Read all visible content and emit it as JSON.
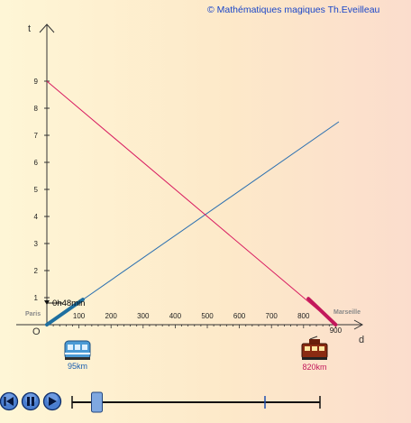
{
  "copyright": "© Mathématiques magiques Th.Eveilleau",
  "axes": {
    "y_name": "t",
    "x_name": "d",
    "origin_label": "O",
    "x_ticks": [
      "100",
      "200",
      "300",
      "400",
      "500",
      "600",
      "700",
      "800",
      "900"
    ],
    "y_ticks": [
      "1",
      "2",
      "3",
      "4",
      "5",
      "6",
      "7",
      "8",
      "9"
    ]
  },
  "cities": {
    "start": "Paris",
    "end": "Marseille"
  },
  "time_readout": "0h48min",
  "trains": {
    "blue": {
      "distance": "95km",
      "color": "#1e6fa0"
    },
    "red": {
      "distance": "820km",
      "color": "#c2185b"
    }
  },
  "colors": {
    "blue_line": "#2a6fb0",
    "red_line": "#d81b60",
    "slider_accent": "#1e4fb0"
  },
  "controls": {
    "rewind_icon": "rewind-icon",
    "pause_icon": "pause-icon",
    "play_icon": "play-icon",
    "slider_value": 0.1
  }
}
